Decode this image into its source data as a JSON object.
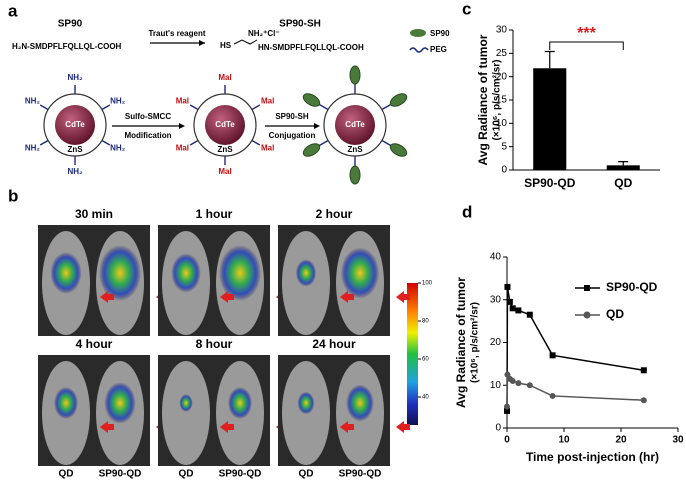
{
  "panel_a": {
    "label": "a",
    "sp90": "SP90",
    "sp90_sequence": "H₂N-SMDPFLFQLLQL-COOH",
    "reagent": "Traut's reagent",
    "sp90_sh": "SP90-SH",
    "sp90_sh_charge": "NH₂⁺Cl⁻",
    "sp90_sh_thiol": "HS",
    "sp90_sh_sequence": "HN-SMDPFLFQLLQL-COOH",
    "legend": [
      "SP90",
      "PEG"
    ],
    "core": [
      "CdTe",
      "CdTe",
      "CdTe"
    ],
    "shell": [
      "ZnS",
      "ZnS",
      "ZnS"
    ],
    "amine_labels": [
      "NH₂",
      "NH₂",
      "NH₂",
      "NH₂",
      "NH₂",
      "NH₂"
    ],
    "mal_labels": [
      "Mal",
      "Mal",
      "Mal",
      "Mal",
      "Mal",
      "Mal"
    ],
    "step1_top": "Sulfo-SMCC",
    "step1_bottom": "Modification",
    "step2_top": "SP90-SH",
    "step2_bottom": "Conjugation"
  },
  "panel_b": {
    "label": "b",
    "timepoints": [
      "30 min",
      "1 hour",
      "2 hour",
      "4 hour",
      "8 hour",
      "24 hour"
    ],
    "group_labels": [
      "QD",
      "SP90-QD",
      "QD",
      "SP90-QD",
      "QD",
      "SP90-QD"
    ],
    "colorbar_ticks": [
      100,
      80,
      60,
      40
    ]
  },
  "chart_data": [
    {
      "type": "bar",
      "panel_label": "c",
      "y_label": [
        "Avg Radiance of tumor",
        "(×10⁶, p/s/cm²/sr)"
      ],
      "categories": [
        "SP90-QD",
        "QD"
      ],
      "values": [
        21.8,
        1.0
      ],
      "errors": [
        3.6,
        0.8
      ],
      "color": "#000000",
      "ylim": [
        0,
        30
      ],
      "yticks": [
        0,
        5,
        10,
        15,
        20,
        25,
        30
      ],
      "annotation": "***",
      "annotation_color": "#d62020"
    },
    {
      "type": "line",
      "panel_label": "d",
      "y_label": [
        "Avg Radiance of tumor",
        "(×10⁶, p/s/cm²/sr)"
      ],
      "x_label": "Time post-injection (hr)",
      "x": [
        0,
        0.08,
        0.5,
        1,
        2,
        4,
        8,
        24
      ],
      "series": [
        {
          "name": "SP90-QD",
          "color": "#000000",
          "marker": "square",
          "values": [
            4,
            33,
            29.5,
            28,
            27.5,
            26.5,
            17,
            13.5
          ]
        },
        {
          "name": "QD",
          "color": "#555555",
          "marker": "circle",
          "values": [
            5,
            12.5,
            11.5,
            11,
            10.5,
            10,
            7.5,
            6.5
          ]
        }
      ],
      "xlim": [
        0,
        30
      ],
      "xticks": [
        0,
        10,
        20,
        30
      ],
      "ylim": [
        0,
        40
      ],
      "yticks": [
        0,
        10,
        20,
        30,
        40
      ]
    }
  ]
}
